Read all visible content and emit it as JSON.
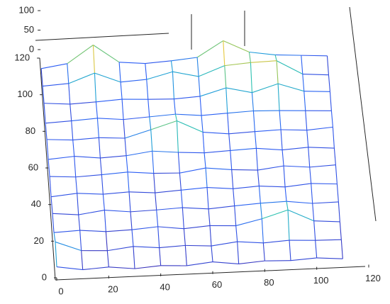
{
  "chart_data": {
    "type": "mesh",
    "x": [
      0,
      10,
      20,
      30,
      40,
      50,
      60,
      70,
      80,
      90,
      100,
      110
    ],
    "y": [
      0,
      10,
      20,
      30,
      40,
      50,
      60,
      70,
      80,
      90,
      100,
      110
    ],
    "z": [
      [
        28,
        18,
        22,
        15,
        20,
        17,
        24,
        16,
        21,
        19,
        23,
        18
      ],
      [
        45,
        20,
        17,
        25,
        19,
        22,
        18,
        26,
        20,
        24,
        21,
        20
      ],
      [
        22,
        25,
        19,
        21,
        26,
        18,
        23,
        20,
        35,
        55,
        24,
        19
      ],
      [
        24,
        18,
        27,
        20,
        22,
        25,
        19,
        24,
        28,
        30,
        22,
        23
      ],
      [
        20,
        26,
        21,
        24,
        19,
        23,
        27,
        21,
        25,
        20,
        26,
        22
      ],
      [
        25,
        21,
        24,
        28,
        22,
        20,
        30,
        23,
        19,
        27,
        21,
        24
      ],
      [
        22,
        27,
        20,
        23,
        32,
        26,
        22,
        25,
        28,
        21,
        25,
        20
      ],
      [
        26,
        22,
        25,
        21,
        40,
        60,
        28,
        21,
        24,
        26,
        22,
        27
      ],
      [
        21,
        24,
        28,
        22,
        26,
        30,
        24,
        27,
        30,
        28,
        25,
        22
      ],
      [
        25,
        20,
        23,
        27,
        24,
        22,
        26,
        45,
        30,
        50,
        28,
        24
      ],
      [
        22,
        26,
        50,
        24,
        28,
        45,
        30,
        55,
        60,
        62,
        25,
        20
      ],
      [
        20,
        30,
        75,
        28,
        22,
        26,
        32,
        72,
        40,
        30,
        26,
        22
      ]
    ],
    "colormap": [
      "#3e26a8",
      "#2c5ef5",
      "#1e9bdb",
      "#2cc1b0",
      "#8ac55e",
      "#f5c83a",
      "#f9fb0e"
    ],
    "xlim": [
      0,
      120
    ],
    "ylim": [
      0,
      120
    ],
    "zlim": [
      0,
      100
    ],
    "xticks": [
      0,
      20,
      40,
      60,
      80,
      100,
      120
    ],
    "yticks": [
      0,
      20,
      40,
      60,
      80,
      100,
      120
    ],
    "zticks": [
      0,
      50,
      100
    ]
  }
}
